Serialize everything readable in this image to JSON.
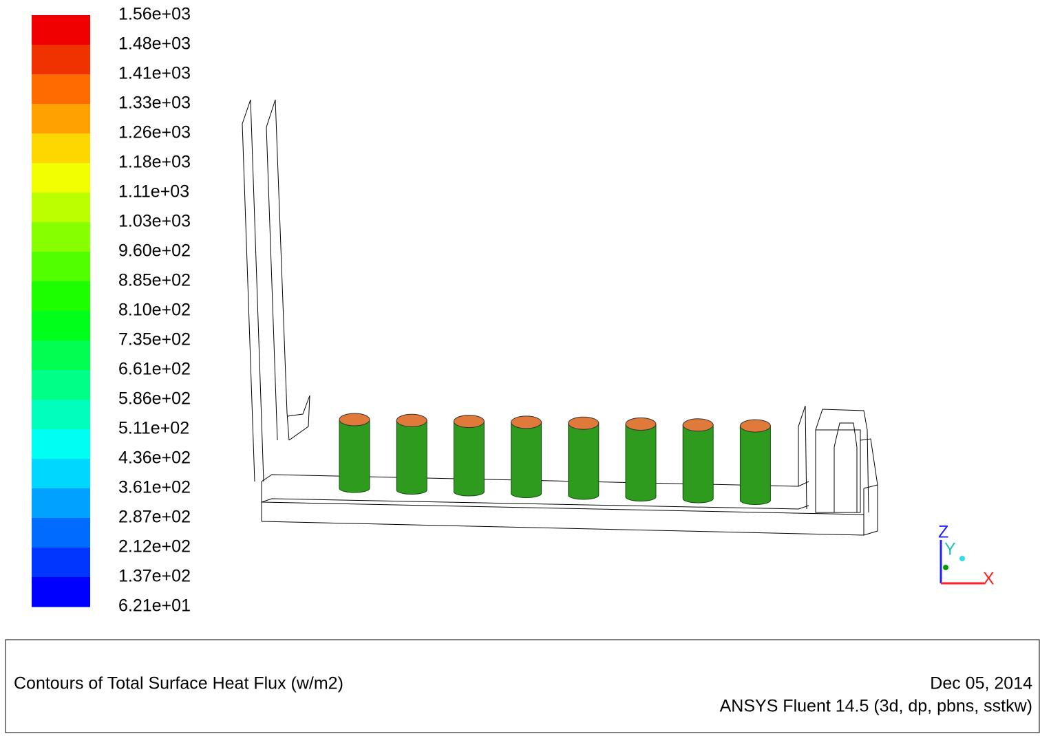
{
  "colorbar": {
    "labels": [
      "1.56e+03",
      "1.48e+03",
      "1.41e+03",
      "1.33e+03",
      "1.26e+03",
      "1.18e+03",
      "1.11e+03",
      "1.03e+03",
      "9.60e+02",
      "8.85e+02",
      "8.10e+02",
      "7.35e+02",
      "6.61e+02",
      "5.86e+02",
      "5.11e+02",
      "4.36e+02",
      "3.61e+02",
      "2.87e+02",
      "2.12e+02",
      "1.37e+02",
      "6.21e+01"
    ]
  },
  "axes": {
    "z": "Z",
    "y": "Y",
    "x": "X"
  },
  "footer": {
    "title": "Contours of Total Surface Heat Flux (w/m2)",
    "date": "Dec 05, 2014",
    "version": "ANSYS Fluent 14.5 (3d, dp, pbns, sstkw)"
  }
}
